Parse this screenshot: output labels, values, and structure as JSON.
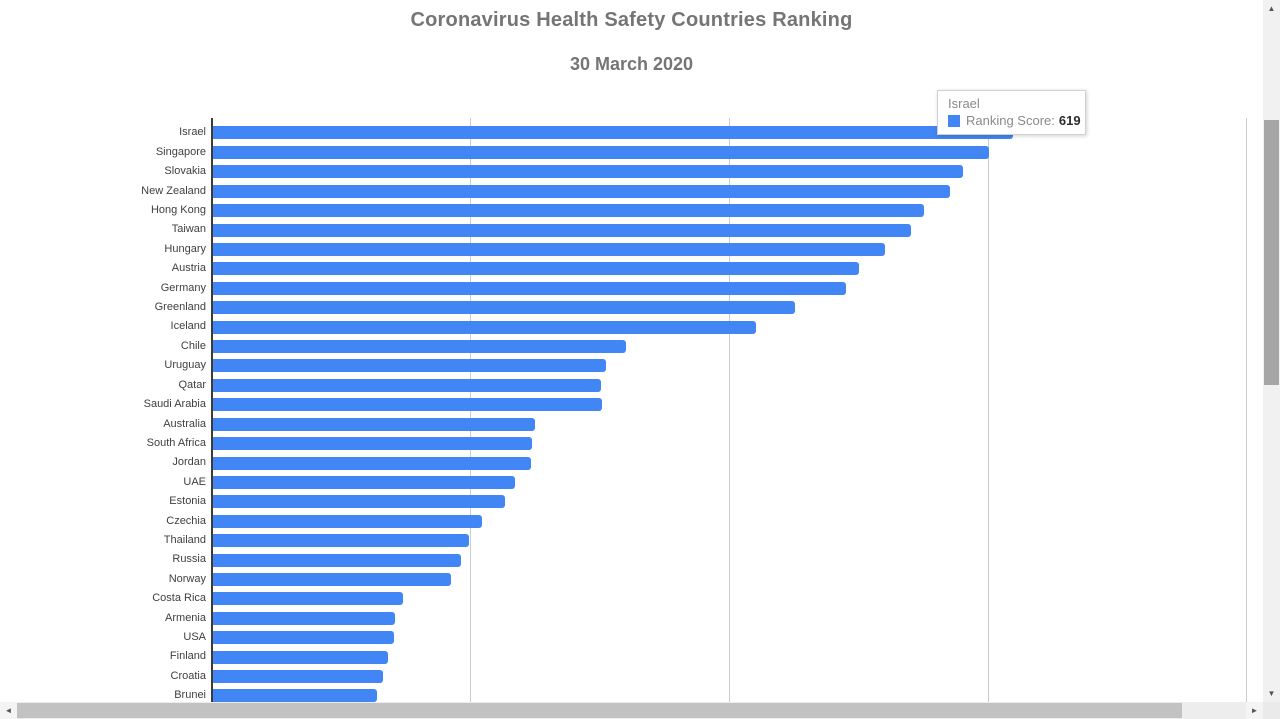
{
  "page": {
    "title": "Coronavirus Health Safety Countries Ranking",
    "subtitle": "30 March 2020"
  },
  "tooltip": {
    "country": "Israel",
    "series_label": "Ranking Score:",
    "value": "619",
    "swatch_color": "#4285f4"
  },
  "icons": {
    "up_arrow": "▲",
    "down_arrow": "▼",
    "left_arrow": "◄",
    "right_arrow": "►"
  },
  "colors": {
    "bar": "#4285f4",
    "gridline": "#cccccc",
    "axis": "#3b3b3b",
    "title_text": "#757575"
  },
  "chart_data": {
    "type": "bar",
    "orientation": "horizontal",
    "title": "Coronavirus Health Safety Countries Ranking",
    "subtitle": "30 March 2020",
    "series_name": "Ranking Score",
    "grid": true,
    "xlim": [
      0,
      800
    ],
    "axis_ticks": [
      0,
      200,
      400,
      600,
      800
    ],
    "bar_color": "#4285f4",
    "categories": [
      "Israel",
      "Singapore",
      "Slovakia",
      "New Zealand",
      "Hong Kong",
      "Taiwan",
      "Hungary",
      "Austria",
      "Germany",
      "Greenland",
      "Iceland",
      "Chile",
      "Uruguay",
      "Qatar",
      "Saudi Arabia",
      "Australia",
      "South Africa",
      "Jordan",
      "UAE",
      "Estonia",
      "Czechia",
      "Thailand",
      "Russia",
      "Norway",
      "Costa Rica",
      "Armenia",
      "USA",
      "Finland",
      "Croatia",
      "Brunei"
    ],
    "values": [
      619,
      600,
      580,
      570,
      550,
      540,
      520,
      500,
      490,
      450,
      420,
      320,
      304,
      300,
      301,
      249,
      247,
      246,
      234,
      226,
      208,
      198,
      192,
      184,
      147,
      141,
      140,
      136,
      132,
      127
    ]
  }
}
